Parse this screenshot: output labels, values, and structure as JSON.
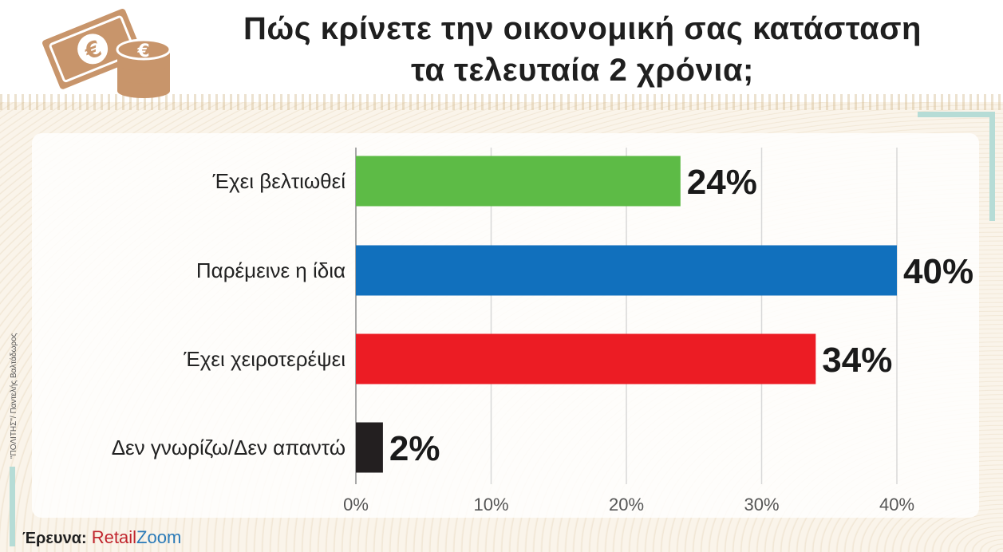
{
  "title_line1": "Πώς κρίνετε την οικονομική σας κατάσταση",
  "title_line2": "τα τελευταία 2 χρόνια;",
  "credit": "\"ΠΟΛΙΤΗΣ\"/ Παντελής Βαλτάδωρος",
  "source_label": "Έρευνα:",
  "source_brand_part1": "Retail",
  "source_brand_part2": "Zoom",
  "colors": {
    "green": "#5dbb46",
    "blue": "#1170bd",
    "red": "#ec1c24",
    "black": "#231f20",
    "logo": "#c8956b"
  },
  "chart_data": {
    "type": "bar",
    "orientation": "horizontal",
    "title": "Πώς κρίνετε την οικονομική σας κατάσταση τα τελευταία 2 χρόνια;",
    "categories": [
      "Έχει βελτιωθεί",
      "Παρέμεινε η ίδια",
      "Έχει χειροτερέψει",
      "Δεν γνωρίζω/Δεν απαντώ"
    ],
    "values": [
      24,
      40,
      34,
      2
    ],
    "value_labels": [
      "24%",
      "40%",
      "34%",
      "2%"
    ],
    "bar_colors": [
      "#5dbb46",
      "#1170bd",
      "#ec1c24",
      "#231f20"
    ],
    "xlim": [
      0,
      40
    ],
    "ticks": [
      0,
      10,
      20,
      30,
      40
    ],
    "tick_labels": [
      "0%",
      "10%",
      "20%",
      "30%",
      "40%"
    ],
    "grid": true
  }
}
